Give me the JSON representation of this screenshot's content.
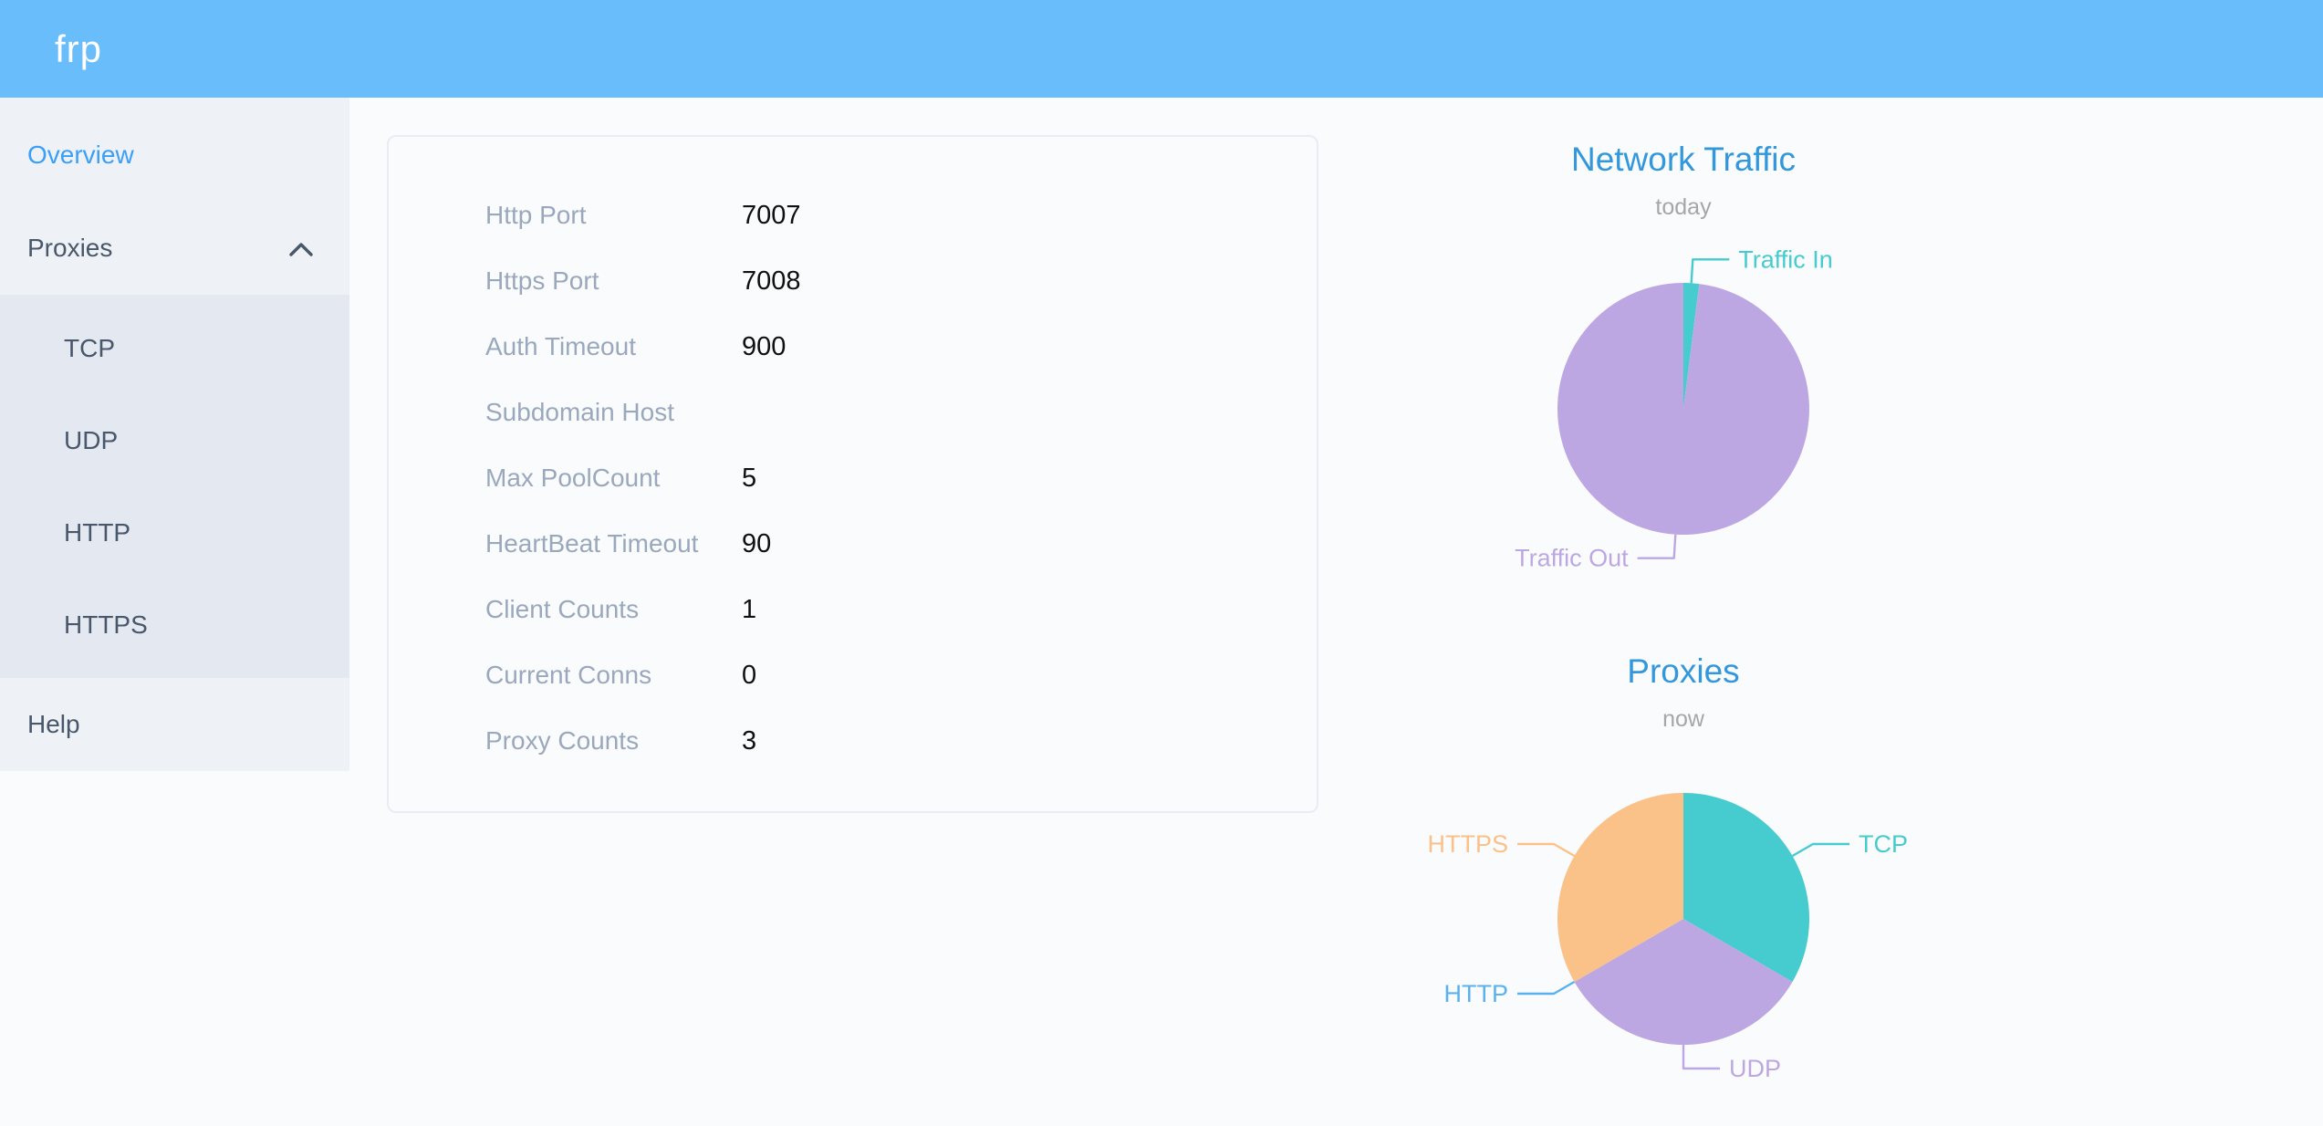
{
  "header": {
    "logo": "frp"
  },
  "sidebar": {
    "items": [
      {
        "label": "Overview",
        "active": true
      },
      {
        "label": "Proxies",
        "expanded": true
      },
      {
        "label": "Help",
        "active": false
      }
    ],
    "proxies_children": [
      "TCP",
      "UDP",
      "HTTP",
      "HTTPS"
    ]
  },
  "config_card": {
    "rows": [
      {
        "label": "Http Port",
        "value": "7007"
      },
      {
        "label": "Https Port",
        "value": "7008"
      },
      {
        "label": "Auth Timeout",
        "value": "900"
      },
      {
        "label": "Subdomain Host",
        "value": ""
      },
      {
        "label": "Max PoolCount",
        "value": "5"
      },
      {
        "label": "HeartBeat Timeout",
        "value": "90"
      },
      {
        "label": "Client Counts",
        "value": "1"
      },
      {
        "label": "Current Conns",
        "value": "0"
      },
      {
        "label": "Proxy Counts",
        "value": "3"
      }
    ]
  },
  "colors": {
    "header_bg": "#6abdfb",
    "sidebar_bg": "#eef1f6",
    "submenu_bg": "#e4e8f1",
    "menu_text": "#48576a",
    "active_menu_item": "#3a9ff5",
    "chart_title_blue": "#3398db"
  },
  "chart_data": [
    {
      "type": "pie",
      "title": "Network Traffic",
      "subtitle": "today",
      "legend_position": "none",
      "labels": [
        "Traffic In",
        "Traffic Out"
      ],
      "values_percent": [
        2,
        98
      ],
      "colors": [
        "#46cbce",
        "#bda7e3"
      ]
    },
    {
      "type": "pie",
      "title": "Proxies",
      "subtitle": "now",
      "legend_position": "none",
      "labels": [
        "TCP",
        "UDP",
        "HTTP",
        "HTTPS"
      ],
      "values": [
        1,
        1,
        0,
        1
      ],
      "colors": [
        "#46cbce",
        "#bda7e3",
        "#5ab1ef",
        "#fac189"
      ]
    }
  ]
}
